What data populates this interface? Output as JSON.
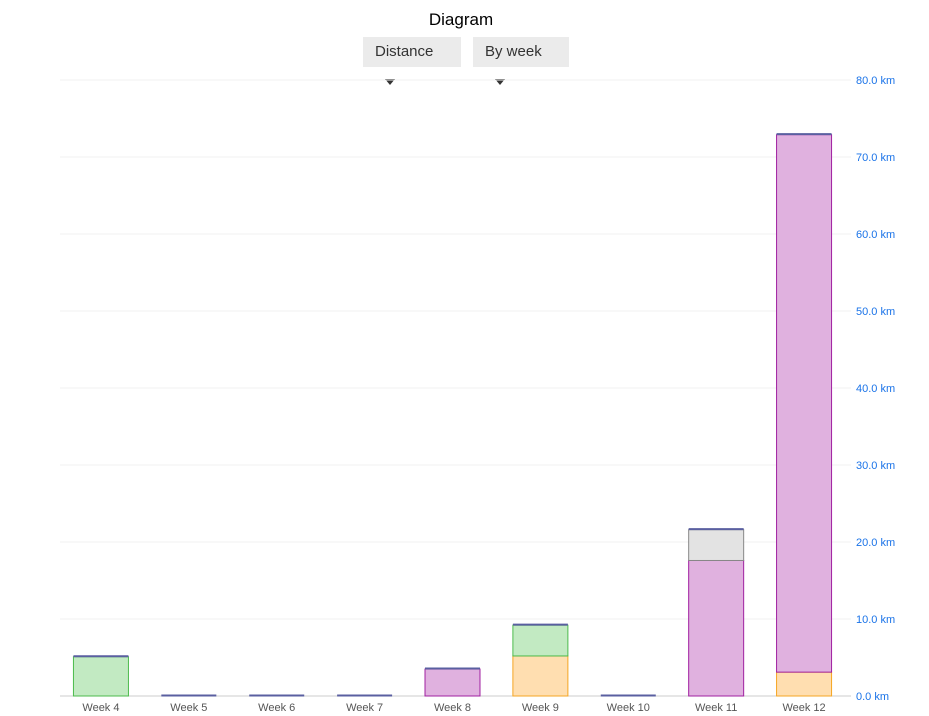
{
  "header": {
    "title": "Diagram"
  },
  "controls": {
    "metric": {
      "selected": "Distance"
    },
    "grouping": {
      "selected": "By week"
    }
  },
  "chart_data": {
    "type": "bar",
    "stacked": true,
    "title": "Diagram",
    "xlabel": "",
    "ylabel": "",
    "ylim": [
      0,
      80
    ],
    "y_axis_position": "right",
    "y_ticks": [
      "0.0 km",
      "10.0 km",
      "20.0 km",
      "30.0 km",
      "40.0 km",
      "50.0 km",
      "60.0 km",
      "70.0 km",
      "80.0 km"
    ],
    "grid": true,
    "categories": [
      "Week 4",
      "Week 5",
      "Week 6",
      "Week 7",
      "Week 8",
      "Week 9",
      "Week 10",
      "Week 11",
      "Week 12"
    ],
    "series": [
      {
        "color": "#ffdeb0",
        "stroke": "#f5a623",
        "values": [
          0,
          0,
          0,
          0,
          0,
          5.2,
          0,
          0,
          3.1
        ]
      },
      {
        "color": "#e0b1df",
        "stroke": "#a020a0",
        "values": [
          0,
          0,
          0,
          0,
          3.5,
          0,
          0,
          17.6,
          69.8
        ]
      },
      {
        "color": "#c2eac2",
        "stroke": "#4cbb4c",
        "values": [
          5.1,
          0,
          0,
          0,
          0,
          4.0,
          0,
          0,
          0
        ]
      },
      {
        "color": "#e3e3e3",
        "stroke": "#888888",
        "values": [
          0,
          0,
          0,
          0,
          0,
          0,
          0,
          4.0,
          0
        ]
      }
    ],
    "top_line_color": "#5a5fa0"
  }
}
